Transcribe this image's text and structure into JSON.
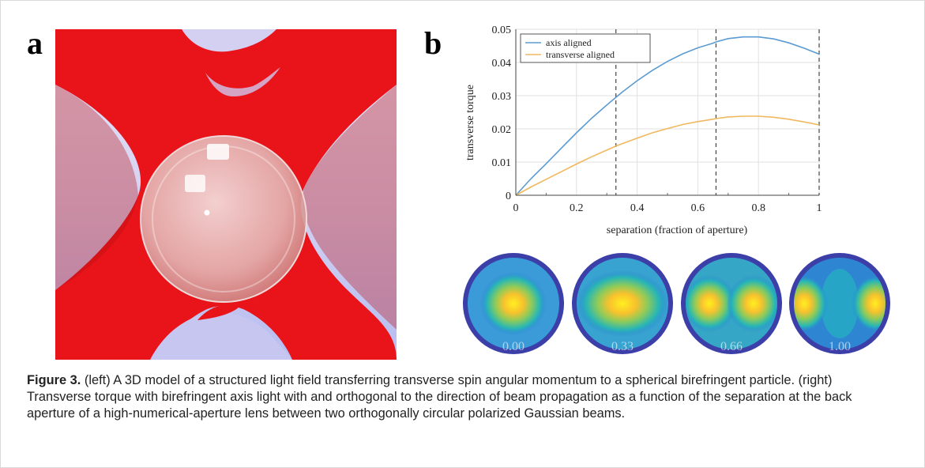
{
  "figure": {
    "panel_a_label": "a",
    "panel_b_label": "b",
    "caption_label": "Figure 3.",
    "caption_text": " (left) A 3D model of a structured light field transferring transverse spin angular momentum to a spherical birefringent particle. (right) Transverse torque with birefringent axis light with and orthogonal to the direction of beam propagation as a function of the separation at the back aperture of a high-numerical-aperture lens between two orthogonally circular polarized Gaussian beams."
  },
  "chart_data": {
    "type": "line",
    "xlabel": "separation (fraction of aperture)",
    "ylabel": "transverse torque",
    "xlim": [
      0,
      1
    ],
    "ylim": [
      0,
      0.05
    ],
    "xticks": [
      "0",
      "0.2",
      "0.4",
      "0.6",
      "0.8",
      "1"
    ],
    "yticks": [
      "0",
      "0.01",
      "0.02",
      "0.03",
      "0.04",
      "0.05"
    ],
    "grid": true,
    "legend_position": "top-left",
    "vertical_markers": [
      0.33,
      0.66,
      1.0
    ],
    "x": [
      0,
      0.05,
      0.1,
      0.15,
      0.2,
      0.25,
      0.3,
      0.33,
      0.35,
      0.4,
      0.45,
      0.5,
      0.55,
      0.6,
      0.65,
      0.66,
      0.7,
      0.75,
      0.8,
      0.85,
      0.9,
      0.95,
      1.0
    ],
    "series": [
      {
        "name": "axis aligned",
        "color": "#5b9bd1",
        "values": [
          0,
          0.005,
          0.0095,
          0.0142,
          0.0188,
          0.0232,
          0.0272,
          0.0295,
          0.031,
          0.0345,
          0.0376,
          0.0403,
          0.0426,
          0.0444,
          0.0458,
          0.0462,
          0.0472,
          0.0477,
          0.0477,
          0.0471,
          0.0459,
          0.0443,
          0.0425
        ]
      },
      {
        "name": "transverse aligned",
        "color": "#f0b85e",
        "values": [
          0,
          0.0025,
          0.0048,
          0.0071,
          0.0094,
          0.0116,
          0.0136,
          0.0148,
          0.0155,
          0.0172,
          0.0188,
          0.0201,
          0.0213,
          0.0222,
          0.0229,
          0.0231,
          0.0236,
          0.0238,
          0.0238,
          0.0235,
          0.0229,
          0.0221,
          0.0212
        ]
      }
    ]
  },
  "pupils": {
    "labels": [
      "0.00",
      "0.33",
      "0.66",
      "1.00"
    ],
    "colors": {
      "ring": "#3d3fa8",
      "background": "#2b7fd8",
      "hot": "#ffe21a"
    }
  }
}
